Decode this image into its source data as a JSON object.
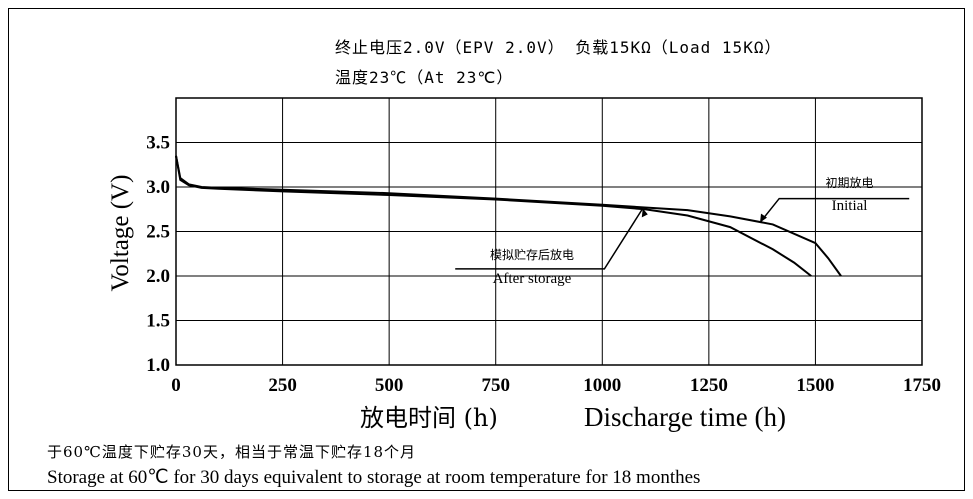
{
  "conditions": {
    "line1": "终止电压2.0V（EPV 2.0V） 负载15KΩ（Load 15KΩ）",
    "line2": "温度23℃（At 23℃）"
  },
  "footnote": {
    "cn": "于60℃温度下贮存30天，相当于常温下贮存18个月",
    "en": "Storage at 60℃ for 30 days equivalent to storage at room temperature for 18 monthes"
  },
  "chart_data": {
    "type": "line",
    "title": "",
    "xlabel_cn": "放电时间 (h)",
    "xlabel": "Discharge time (h)",
    "ylabel": "Voltage (V)",
    "xlim": [
      0,
      1750
    ],
    "ylim": [
      1.0,
      4.0
    ],
    "x_ticks": [
      0,
      250,
      500,
      750,
      1000,
      1250,
      1500,
      1750
    ],
    "y_ticks": [
      1.0,
      1.5,
      2.0,
      2.5,
      3.0,
      3.5
    ],
    "grid": true,
    "series": [
      {
        "name": "初期放电 Initial",
        "points": [
          [
            0,
            3.35
          ],
          [
            10,
            3.1
          ],
          [
            30,
            3.03
          ],
          [
            60,
            3.0
          ],
          [
            100,
            2.99
          ],
          [
            250,
            2.97
          ],
          [
            500,
            2.93
          ],
          [
            750,
            2.87
          ],
          [
            1000,
            2.8
          ],
          [
            1100,
            2.77
          ],
          [
            1200,
            2.74
          ],
          [
            1300,
            2.67
          ],
          [
            1400,
            2.58
          ],
          [
            1500,
            2.37
          ],
          [
            1530,
            2.2
          ],
          [
            1560,
            2.0
          ]
        ]
      },
      {
        "name": "模拟贮存后放电 After storage",
        "points": [
          [
            0,
            3.35
          ],
          [
            10,
            3.08
          ],
          [
            30,
            3.02
          ],
          [
            60,
            2.99
          ],
          [
            100,
            2.98
          ],
          [
            250,
            2.95
          ],
          [
            500,
            2.91
          ],
          [
            750,
            2.86
          ],
          [
            1000,
            2.79
          ],
          [
            1100,
            2.75
          ],
          [
            1200,
            2.68
          ],
          [
            1300,
            2.55
          ],
          [
            1400,
            2.3
          ],
          [
            1450,
            2.15
          ],
          [
            1490,
            2.0
          ]
        ]
      }
    ],
    "annotations": [
      {
        "cn": "初期放电",
        "en": "Initial"
      },
      {
        "cn": "模拟贮存后放电",
        "en": "After storage"
      }
    ]
  }
}
